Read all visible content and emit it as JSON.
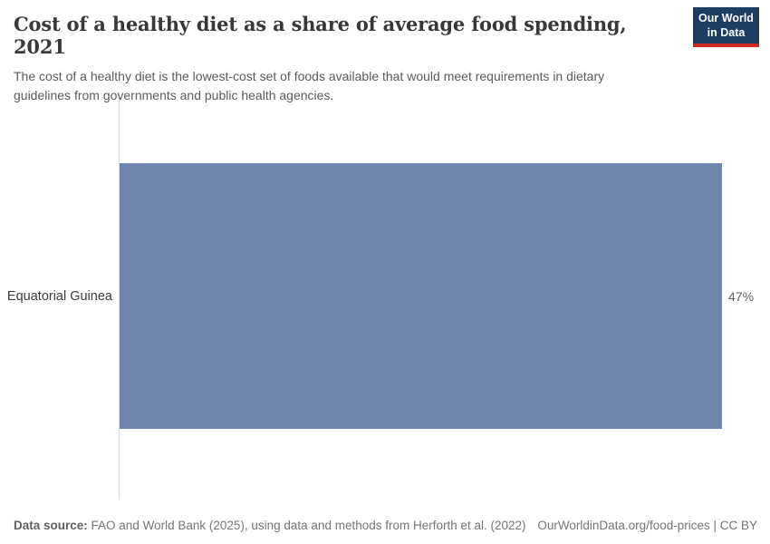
{
  "header": {
    "title": "Cost of a healthy diet as a share of average food spending, 2021",
    "subtitle": "The cost of a healthy diet is the lowest-cost set of foods available that would meet requirements in dietary guidelines from governments and public health agencies.",
    "logo": {
      "line1": "Our World",
      "line2": "in Data",
      "bg_color": "#1d3d63",
      "accent_color": "#cf2820"
    }
  },
  "chart_data": {
    "type": "bar",
    "orientation": "horizontal",
    "title": "Cost of a healthy diet as a share of average food spending, 2021",
    "categories": [
      "Equatorial Guinea"
    ],
    "values": [
      47
    ],
    "unit": "%",
    "value_labels": [
      "47%"
    ],
    "xlim": [
      0,
      47
    ],
    "grid": false,
    "legend": "none",
    "bar_color": "#6e85ae",
    "axis_line_color": "#dcdcdc"
  },
  "footer": {
    "source_label": "Data source:",
    "source_text": "FAO and World Bank (2025), using data and methods from Herforth et al. (2022)",
    "license_text": "OurWorldinData.org/food-prices | CC BY"
  }
}
